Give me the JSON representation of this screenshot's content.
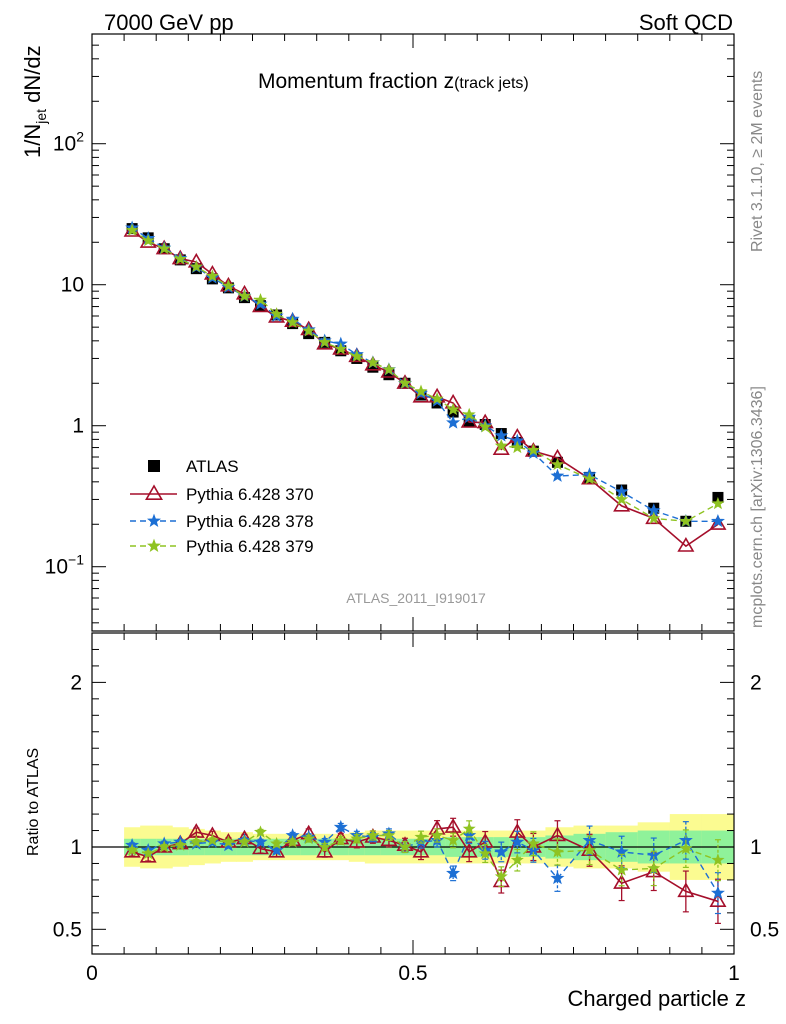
{
  "header": {
    "left": "7000 GeV pp",
    "right": "Soft QCD"
  },
  "plot_title_main": "Momentum fraction ",
  "plot_title_z": "z",
  "plot_title_sub": "(track jets)",
  "analysis_id": "ATLAS_2011_I919017",
  "side_labels": {
    "rivet": "Rivet 3.1.10, ≥ 2M events",
    "mcplots": "mcplots.cern.ch [arXiv:1306.3436]"
  },
  "y_label_main": "1/N",
  "y_label_sub": "jet",
  "y_label_tail": " dN/dz",
  "ratio_ylabel": "Ratio to ATLAS",
  "x_label": "Charged particle z",
  "colors": {
    "atlas": "#000000",
    "p370": "#a50f2b",
    "p378": "#1c6fd4",
    "p379": "#8fc322",
    "band_inner": "#8ff29a",
    "band_outer": "#fbfb91"
  },
  "chart_data": [
    {
      "type": "scatter",
      "title": "Momentum fraction z(track jets)",
      "xlabel": "Charged particle z",
      "ylabel": "1/N_jet dN/dz",
      "yscale": "log",
      "xlim": [
        0,
        1
      ],
      "ylim": [
        0.035,
        600
      ],
      "x_ticks": [
        "0",
        "0.5",
        "1"
      ],
      "y_ticks": [
        "10^-1",
        "1",
        "10",
        "10^2"
      ],
      "legend": "middle-left",
      "x": [
        0.0625,
        0.0875,
        0.1125,
        0.1375,
        0.1625,
        0.1875,
        0.2125,
        0.2375,
        0.2625,
        0.2875,
        0.3125,
        0.3375,
        0.3625,
        0.3875,
        0.4125,
        0.4375,
        0.4625,
        0.4875,
        0.5125,
        0.5375,
        0.5625,
        0.5875,
        0.6125,
        0.6375,
        0.6625,
        0.6875,
        0.725,
        0.775,
        0.825,
        0.875,
        0.925,
        0.975
      ],
      "series": [
        {
          "name": "ATLAS",
          "marker": "square",
          "values": [
            25.0,
            21.5,
            18.0,
            15.0,
            13.0,
            11.0,
            9.5,
            8.1,
            7.1,
            6.1,
            5.3,
            4.5,
            3.9,
            3.4,
            3.0,
            2.6,
            2.3,
            2.0,
            1.65,
            1.45,
            1.25,
            1.08,
            1.02,
            0.88,
            0.76,
            0.66,
            0.55,
            0.43,
            0.35,
            0.26,
            0.21,
            0.31
          ]
        },
        {
          "name": "Pythia 6.428 370",
          "marker": "triangle",
          "values": [
            24.0,
            20.0,
            18.0,
            15.3,
            14.5,
            11.9,
            9.8,
            8.6,
            7.0,
            5.9,
            5.5,
            4.8,
            3.8,
            3.5,
            3.1,
            2.7,
            2.4,
            2.0,
            1.6,
            1.6,
            1.45,
            1.06,
            1.05,
            0.68,
            0.83,
            0.66,
            0.59,
            0.42,
            0.27,
            0.22,
            0.14,
            0.2
          ]
        },
        {
          "name": "Pythia 6.428 378",
          "marker": "star",
          "values": [
            25.3,
            21.3,
            18.2,
            15.4,
            13.3,
            11.2,
            9.6,
            8.3,
            7.3,
            6.0,
            5.7,
            4.8,
            4.0,
            3.8,
            3.2,
            2.8,
            2.5,
            2.0,
            1.7,
            1.5,
            1.05,
            1.15,
            1.0,
            0.85,
            0.78,
            0.64,
            0.44,
            0.45,
            0.34,
            0.25,
            0.21,
            0.21
          ]
        },
        {
          "name": "Pythia 6.428 379",
          "marker": "star",
          "values": [
            24.3,
            20.5,
            18.0,
            15.2,
            13.4,
            11.5,
            9.8,
            8.3,
            7.8,
            6.2,
            5.4,
            4.7,
            3.9,
            3.5,
            3.1,
            2.8,
            2.5,
            2.0,
            1.75,
            1.55,
            1.3,
            1.2,
            0.98,
            0.72,
            0.7,
            0.67,
            0.53,
            0.42,
            0.3,
            0.22,
            0.21,
            0.28
          ]
        }
      ]
    },
    {
      "type": "line",
      "ylabel": "Ratio to ATLAS",
      "xlabel": "Charged particle z",
      "xlim": [
        0,
        1
      ],
      "ylim": [
        0.35,
        2.3
      ],
      "y_ticks": [
        "0.5",
        "1",
        "2"
      ],
      "band_inner_halfwidth": [
        0.05,
        0.05,
        0.05,
        0.05,
        0.05,
        0.05,
        0.05,
        0.05,
        0.05,
        0.05,
        0.05,
        0.05,
        0.05,
        0.05,
        0.05,
        0.05,
        0.05,
        0.05,
        0.05,
        0.05,
        0.06,
        0.06,
        0.06,
        0.06,
        0.06,
        0.06,
        0.07,
        0.08,
        0.09,
        0.1,
        0.1,
        0.1
      ],
      "band_outer_halfwidth": [
        0.12,
        0.13,
        0.13,
        0.12,
        0.11,
        0.1,
        0.09,
        0.09,
        0.08,
        0.08,
        0.08,
        0.08,
        0.08,
        0.08,
        0.09,
        0.1,
        0.1,
        0.1,
        0.1,
        0.1,
        0.1,
        0.1,
        0.1,
        0.1,
        0.1,
        0.1,
        0.12,
        0.13,
        0.13,
        0.15,
        0.2,
        0.2
      ],
      "series": [
        {
          "name": "Pythia 6.428 370",
          "values": [
            0.97,
            0.94,
            1.0,
            1.02,
            1.09,
            1.07,
            1.03,
            1.05,
            0.99,
            0.97,
            1.04,
            1.08,
            0.97,
            1.05,
            1.03,
            1.06,
            1.04,
            1.01,
            0.97,
            1.11,
            1.12,
            0.97,
            1.03,
            0.79,
            1.09,
            1.0,
            1.07,
            0.98,
            0.78,
            0.85,
            0.73,
            0.67
          ]
        },
        {
          "name": "Pythia 6.428 378",
          "values": [
            1.01,
            0.98,
            1.02,
            1.03,
            1.02,
            1.03,
            1.01,
            1.04,
            1.03,
            0.98,
            1.07,
            1.06,
            1.03,
            1.12,
            1.07,
            1.06,
            1.08,
            1.0,
            1.03,
            1.04,
            0.84,
            1.07,
            0.98,
            0.97,
            1.03,
            0.98,
            0.81,
            1.04,
            0.97,
            0.95,
            1.04,
            0.72
          ]
        },
        {
          "name": "Pythia 6.428 379",
          "values": [
            0.98,
            0.96,
            1.0,
            1.01,
            1.03,
            1.04,
            1.03,
            1.03,
            1.09,
            1.02,
            1.03,
            1.05,
            1.0,
            1.04,
            1.05,
            1.07,
            1.07,
            1.0,
            1.06,
            1.07,
            1.04,
            1.11,
            0.96,
            0.82,
            0.92,
            1.02,
            0.97,
            0.98,
            0.86,
            0.87,
            0.99,
            0.92
          ]
        }
      ]
    }
  ]
}
